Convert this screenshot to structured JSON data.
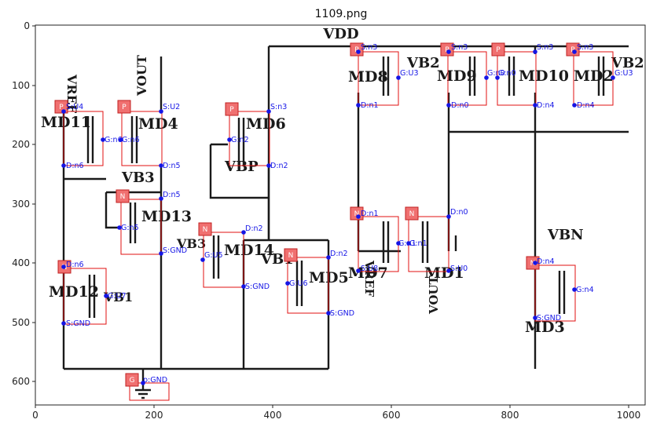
{
  "figure": {
    "title": "1109.png"
  },
  "axes": {
    "x_ticks": [
      "0",
      "200",
      "400",
      "600",
      "800",
      "1000"
    ],
    "y_ticks": [
      "0",
      "100",
      "200",
      "300",
      "400",
      "500",
      "600"
    ]
  },
  "net_labels": {
    "vdd": "VDD",
    "vref_top": "VREF",
    "vout_top": "VOUT",
    "vb3": "VB3",
    "vbp": "VBP",
    "vb2": "VB2",
    "vb2_md2": "VB2",
    "vb1_md14": "VB1",
    "vb1_md12": "VB1",
    "vbn": "VBN",
    "vref_bottom": "VREF",
    "vout_bottom": "VOUT",
    "vb3_md14": "VB3"
  },
  "devices": [
    {
      "name": "MD11",
      "tag": "P",
      "terms": {
        "s": "S:U4",
        "g": "G:n6",
        "d": "D:n6"
      }
    },
    {
      "name": "MD4",
      "tag": "P",
      "terms": {
        "s": "S:U2",
        "g": "G:n6",
        "d": "D:n5"
      }
    },
    {
      "name": "MD6",
      "tag": "P",
      "terms": {
        "s": "S:n3",
        "g": "G:n2",
        "d": "D:n2"
      }
    },
    {
      "name": "MD13",
      "tag": "N",
      "terms": {
        "d": "D:n5",
        "g": "G:n5",
        "s": "S:GND"
      }
    },
    {
      "name": "MD14",
      "tag": "N",
      "terms": {
        "d": "D:n2",
        "g": "G:U5",
        "s": "S:GND"
      }
    },
    {
      "name": "MD5",
      "tag": "N",
      "terms": {
        "d": "D:n2",
        "g": "G:U6",
        "s": "S:GND"
      }
    },
    {
      "name": "MD12",
      "tag": "N",
      "terms": {
        "d": "D:n6",
        "g": "G:U7",
        "s": "S:GND"
      }
    },
    {
      "name": "MD8",
      "tag": "P",
      "terms": {
        "s": "S:n3",
        "g": "G:U3",
        "d": "D:n1"
      }
    },
    {
      "name": "MD9",
      "tag": "P",
      "terms": {
        "s": "S:n3",
        "g": "G:n0",
        "d": "D:n0"
      }
    },
    {
      "name": "MD10",
      "tag": "P",
      "terms": {
        "s": "S:n3",
        "g": "G:n0",
        "d": "D:n4"
      }
    },
    {
      "name": "MD2",
      "tag": "P",
      "terms": {
        "s": "S:n3",
        "g": "G:U3",
        "d": "D:n4"
      }
    },
    {
      "name": "MD7",
      "tag": "N",
      "terms": {
        "d": "D:n1",
        "g": "G:n1",
        "s": "S:U8"
      }
    },
    {
      "name": "MD1",
      "tag": "N",
      "terms": {
        "d": "D:n0",
        "g": "G:n1",
        "s": "S:U0"
      }
    },
    {
      "name": "MD3",
      "tag": "N",
      "terms": {
        "d": "D:n4",
        "g": "G:n4",
        "s": "S:GND"
      }
    }
  ],
  "ground": {
    "tag": "G",
    "label": "p:GND"
  }
}
